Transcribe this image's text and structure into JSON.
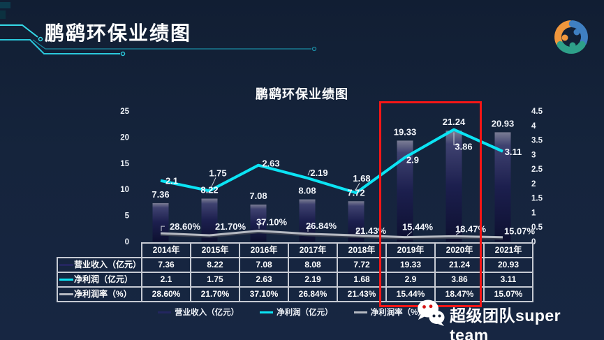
{
  "header": {
    "title": "鹏鹞环保业绩图"
  },
  "chart_data": {
    "type": "combo-bar-line",
    "title": "鹏鹞环保业绩图",
    "categories": [
      "2014年",
      "2015年",
      "2016年",
      "2017年",
      "2018年",
      "2019年",
      "2020年",
      "2021年"
    ],
    "series": [
      {
        "name": "营业收入（亿元）",
        "type": "bar",
        "axis": "left",
        "color": "#23265f",
        "values": [
          7.36,
          8.22,
          7.08,
          8.08,
          7.72,
          19.33,
          21.24,
          20.93
        ],
        "labels": [
          "7.36",
          "8.22",
          "7.08",
          "8.08",
          "7.72",
          "19.33",
          "21.24",
          "20.93"
        ]
      },
      {
        "name": "净利润（亿元）",
        "type": "line",
        "axis": "right",
        "color": "#0be4f4",
        "values": [
          2.1,
          1.75,
          2.63,
          2.19,
          1.68,
          2.9,
          3.86,
          3.11
        ],
        "labels": [
          "2.1",
          "1.75",
          "2.63",
          "2.19",
          "1.68",
          "2.9",
          "3.86",
          "3.11"
        ]
      },
      {
        "name": "净利润率（%）",
        "type": "line",
        "axis": "right-as-fraction",
        "color": "#b6bac2",
        "values": [
          28.6,
          21.7,
          37.1,
          26.84,
          21.43,
          15.44,
          18.47,
          15.07
        ],
        "labels": [
          "28.60%",
          "21.70%",
          "37.10%",
          "26.84%",
          "21.43%",
          "15.44%",
          "18.47%",
          "15.07%"
        ]
      }
    ],
    "left_axis": {
      "min": 0,
      "max": 25,
      "ticks": [
        25,
        20,
        15,
        10,
        5,
        0
      ]
    },
    "right_axis": {
      "min": 0,
      "max": 4.5,
      "ticks": [
        4.5,
        4,
        3.5,
        3,
        2.5,
        2,
        1.5,
        1,
        0.5,
        0
      ]
    },
    "highlight": {
      "categories": [
        "2019年",
        "2020年"
      ],
      "color": "#f51616"
    },
    "legend_position": "bottom",
    "grid": false
  },
  "table": {
    "columns": [
      "2014年",
      "2015年",
      "2016年",
      "2017年",
      "2018年",
      "2019年",
      "2020年",
      "2021年"
    ],
    "rows": [
      {
        "label": "营业收入（亿元）",
        "swatch": "#23265f",
        "values": [
          "7.36",
          "8.22",
          "7.08",
          "8.08",
          "7.72",
          "19.33",
          "21.24",
          "20.93"
        ]
      },
      {
        "label": "净利润（亿元）",
        "swatch": "#0be4f4",
        "values": [
          "2.1",
          "1.75",
          "2.63",
          "2.19",
          "1.68",
          "2.9",
          "3.86",
          "3.11"
        ]
      },
      {
        "label": "净利润率（%）",
        "swatch": "#b6bac2",
        "values": [
          "28.60%",
          "21.70%",
          "37.10%",
          "26.84%",
          "21.43%",
          "15.44%",
          "18.47%",
          "15.07%"
        ]
      }
    ]
  },
  "legend": {
    "items": [
      {
        "label": "营业收入（亿元）",
        "color": "#23265f"
      },
      {
        "label": "净利润（亿元）",
        "color": "#0be4f4"
      },
      {
        "label": "净利润率（%）",
        "color": "#b6bac2"
      }
    ]
  },
  "footer": {
    "brand": "超级团队super team"
  }
}
